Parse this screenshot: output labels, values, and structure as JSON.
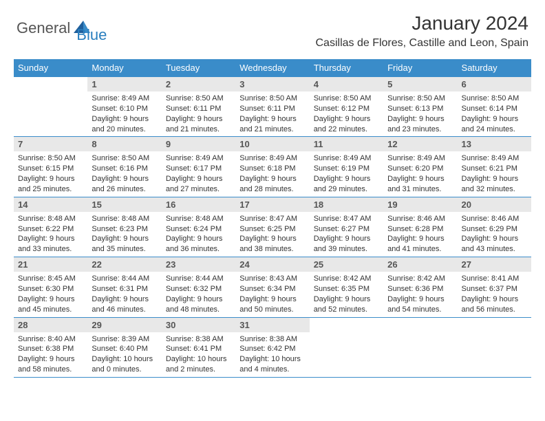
{
  "brand": {
    "part1": "General",
    "part2": "Blue"
  },
  "title": "January 2024",
  "location": "Casillas de Flores, Castille and Leon, Spain",
  "colors": {
    "header_bg": "#3a8cc9",
    "header_text": "#ffffff",
    "daynum_bg": "#e8e8e8",
    "daynum_text": "#555555",
    "border": "#3a8cc9",
    "logo_accent": "#2a7fbf",
    "logo_gray": "#555555",
    "body_text": "#333333"
  },
  "weekdays": [
    "Sunday",
    "Monday",
    "Tuesday",
    "Wednesday",
    "Thursday",
    "Friday",
    "Saturday"
  ],
  "weeks": [
    [
      {
        "blank": true
      },
      {
        "num": "1",
        "sunrise": "Sunrise: 8:49 AM",
        "sunset": "Sunset: 6:10 PM",
        "day1": "Daylight: 9 hours",
        "day2": "and 20 minutes."
      },
      {
        "num": "2",
        "sunrise": "Sunrise: 8:50 AM",
        "sunset": "Sunset: 6:11 PM",
        "day1": "Daylight: 9 hours",
        "day2": "and 21 minutes."
      },
      {
        "num": "3",
        "sunrise": "Sunrise: 8:50 AM",
        "sunset": "Sunset: 6:11 PM",
        "day1": "Daylight: 9 hours",
        "day2": "and 21 minutes."
      },
      {
        "num": "4",
        "sunrise": "Sunrise: 8:50 AM",
        "sunset": "Sunset: 6:12 PM",
        "day1": "Daylight: 9 hours",
        "day2": "and 22 minutes."
      },
      {
        "num": "5",
        "sunrise": "Sunrise: 8:50 AM",
        "sunset": "Sunset: 6:13 PM",
        "day1": "Daylight: 9 hours",
        "day2": "and 23 minutes."
      },
      {
        "num": "6",
        "sunrise": "Sunrise: 8:50 AM",
        "sunset": "Sunset: 6:14 PM",
        "day1": "Daylight: 9 hours",
        "day2": "and 24 minutes."
      }
    ],
    [
      {
        "num": "7",
        "sunrise": "Sunrise: 8:50 AM",
        "sunset": "Sunset: 6:15 PM",
        "day1": "Daylight: 9 hours",
        "day2": "and 25 minutes."
      },
      {
        "num": "8",
        "sunrise": "Sunrise: 8:50 AM",
        "sunset": "Sunset: 6:16 PM",
        "day1": "Daylight: 9 hours",
        "day2": "and 26 minutes."
      },
      {
        "num": "9",
        "sunrise": "Sunrise: 8:49 AM",
        "sunset": "Sunset: 6:17 PM",
        "day1": "Daylight: 9 hours",
        "day2": "and 27 minutes."
      },
      {
        "num": "10",
        "sunrise": "Sunrise: 8:49 AM",
        "sunset": "Sunset: 6:18 PM",
        "day1": "Daylight: 9 hours",
        "day2": "and 28 minutes."
      },
      {
        "num": "11",
        "sunrise": "Sunrise: 8:49 AM",
        "sunset": "Sunset: 6:19 PM",
        "day1": "Daylight: 9 hours",
        "day2": "and 29 minutes."
      },
      {
        "num": "12",
        "sunrise": "Sunrise: 8:49 AM",
        "sunset": "Sunset: 6:20 PM",
        "day1": "Daylight: 9 hours",
        "day2": "and 31 minutes."
      },
      {
        "num": "13",
        "sunrise": "Sunrise: 8:49 AM",
        "sunset": "Sunset: 6:21 PM",
        "day1": "Daylight: 9 hours",
        "day2": "and 32 minutes."
      }
    ],
    [
      {
        "num": "14",
        "sunrise": "Sunrise: 8:48 AM",
        "sunset": "Sunset: 6:22 PM",
        "day1": "Daylight: 9 hours",
        "day2": "and 33 minutes."
      },
      {
        "num": "15",
        "sunrise": "Sunrise: 8:48 AM",
        "sunset": "Sunset: 6:23 PM",
        "day1": "Daylight: 9 hours",
        "day2": "and 35 minutes."
      },
      {
        "num": "16",
        "sunrise": "Sunrise: 8:48 AM",
        "sunset": "Sunset: 6:24 PM",
        "day1": "Daylight: 9 hours",
        "day2": "and 36 minutes."
      },
      {
        "num": "17",
        "sunrise": "Sunrise: 8:47 AM",
        "sunset": "Sunset: 6:25 PM",
        "day1": "Daylight: 9 hours",
        "day2": "and 38 minutes."
      },
      {
        "num": "18",
        "sunrise": "Sunrise: 8:47 AM",
        "sunset": "Sunset: 6:27 PM",
        "day1": "Daylight: 9 hours",
        "day2": "and 39 minutes."
      },
      {
        "num": "19",
        "sunrise": "Sunrise: 8:46 AM",
        "sunset": "Sunset: 6:28 PM",
        "day1": "Daylight: 9 hours",
        "day2": "and 41 minutes."
      },
      {
        "num": "20",
        "sunrise": "Sunrise: 8:46 AM",
        "sunset": "Sunset: 6:29 PM",
        "day1": "Daylight: 9 hours",
        "day2": "and 43 minutes."
      }
    ],
    [
      {
        "num": "21",
        "sunrise": "Sunrise: 8:45 AM",
        "sunset": "Sunset: 6:30 PM",
        "day1": "Daylight: 9 hours",
        "day2": "and 45 minutes."
      },
      {
        "num": "22",
        "sunrise": "Sunrise: 8:44 AM",
        "sunset": "Sunset: 6:31 PM",
        "day1": "Daylight: 9 hours",
        "day2": "and 46 minutes."
      },
      {
        "num": "23",
        "sunrise": "Sunrise: 8:44 AM",
        "sunset": "Sunset: 6:32 PM",
        "day1": "Daylight: 9 hours",
        "day2": "and 48 minutes."
      },
      {
        "num": "24",
        "sunrise": "Sunrise: 8:43 AM",
        "sunset": "Sunset: 6:34 PM",
        "day1": "Daylight: 9 hours",
        "day2": "and 50 minutes."
      },
      {
        "num": "25",
        "sunrise": "Sunrise: 8:42 AM",
        "sunset": "Sunset: 6:35 PM",
        "day1": "Daylight: 9 hours",
        "day2": "and 52 minutes."
      },
      {
        "num": "26",
        "sunrise": "Sunrise: 8:42 AM",
        "sunset": "Sunset: 6:36 PM",
        "day1": "Daylight: 9 hours",
        "day2": "and 54 minutes."
      },
      {
        "num": "27",
        "sunrise": "Sunrise: 8:41 AM",
        "sunset": "Sunset: 6:37 PM",
        "day1": "Daylight: 9 hours",
        "day2": "and 56 minutes."
      }
    ],
    [
      {
        "num": "28",
        "sunrise": "Sunrise: 8:40 AM",
        "sunset": "Sunset: 6:38 PM",
        "day1": "Daylight: 9 hours",
        "day2": "and 58 minutes."
      },
      {
        "num": "29",
        "sunrise": "Sunrise: 8:39 AM",
        "sunset": "Sunset: 6:40 PM",
        "day1": "Daylight: 10 hours",
        "day2": "and 0 minutes."
      },
      {
        "num": "30",
        "sunrise": "Sunrise: 8:38 AM",
        "sunset": "Sunset: 6:41 PM",
        "day1": "Daylight: 10 hours",
        "day2": "and 2 minutes."
      },
      {
        "num": "31",
        "sunrise": "Sunrise: 8:38 AM",
        "sunset": "Sunset: 6:42 PM",
        "day1": "Daylight: 10 hours",
        "day2": "and 4 minutes."
      },
      {
        "blank": true
      },
      {
        "blank": true
      },
      {
        "blank": true
      }
    ]
  ]
}
